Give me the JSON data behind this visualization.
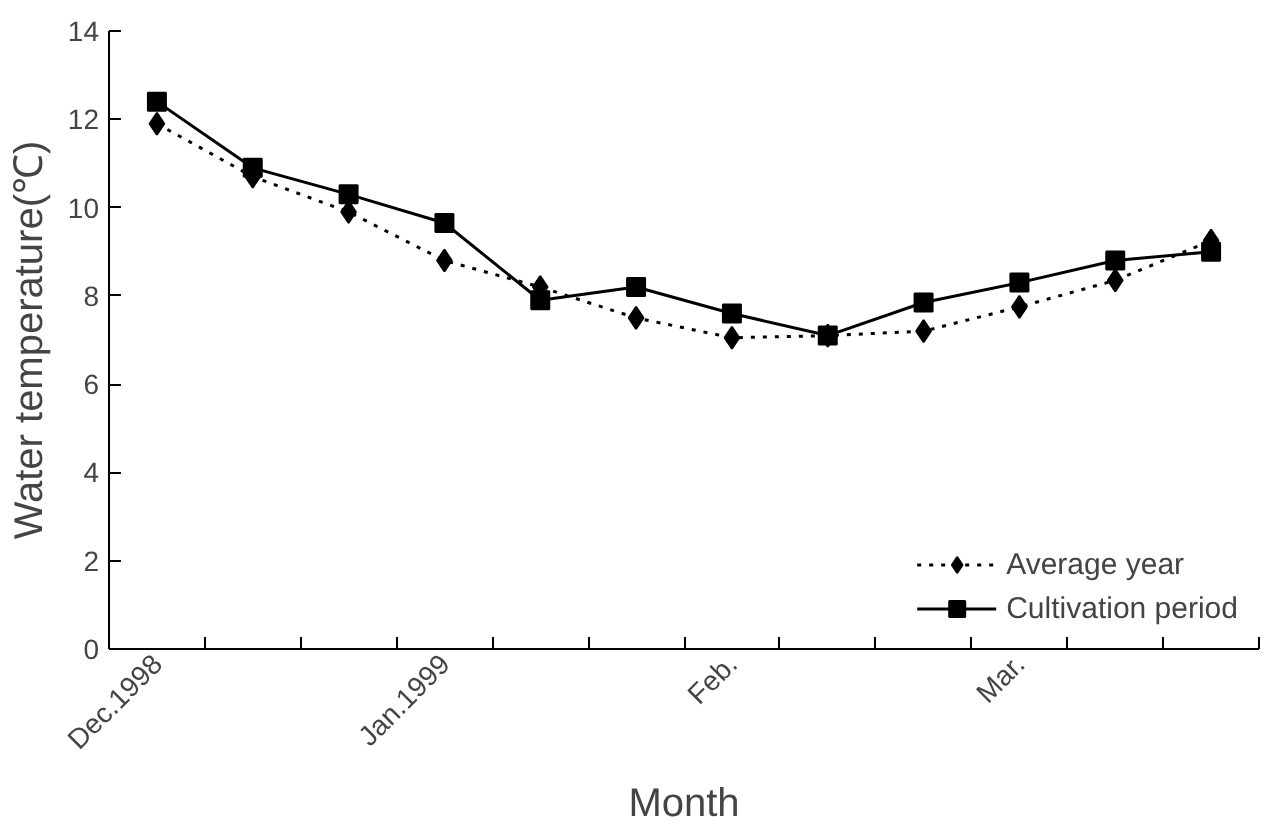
{
  "chart_data": {
    "type": "line",
    "xlabel": "Month",
    "ylabel": "Water temperature(℃)",
    "categories": [
      "Dec.1998",
      null,
      null,
      "Jan.1999",
      null,
      null,
      "Feb.",
      null,
      null,
      "Mar.",
      null,
      null
    ],
    "series": [
      {
        "name": "Average year",
        "color": "#000000",
        "marker": "diamond",
        "line_style": "dotted",
        "values": [
          11.9,
          10.7,
          9.9,
          8.8,
          8.2,
          7.5,
          7.05,
          7.1,
          7.2,
          7.75,
          8.35,
          9.25
        ]
      },
      {
        "name": "Cultivation period",
        "color": "#000000",
        "marker": "square",
        "line_style": "solid",
        "values": [
          12.4,
          10.9,
          10.3,
          9.65,
          7.9,
          8.2,
          7.6,
          7.1,
          7.85,
          8.3,
          8.8,
          9.0
        ]
      }
    ],
    "ylim": [
      0,
      14
    ],
    "yticks": [
      0,
      2,
      4,
      6,
      8,
      10,
      12,
      14
    ],
    "grid": false,
    "legend": "bottom right"
  }
}
